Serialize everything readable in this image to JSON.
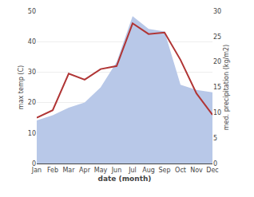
{
  "chart_data": {
    "type": "line",
    "categories": [
      "Jan",
      "Feb",
      "Mar",
      "Apr",
      "May",
      "Jun",
      "Jul",
      "Aug",
      "Sep",
      "Oct",
      "Nov",
      "Dec"
    ],
    "series": [
      {
        "type": "area",
        "color": "#b8c8e8",
        "axis": "y2",
        "values": [
          8.5,
          9.5,
          11.0,
          12.0,
          15.0,
          20.0,
          29.0,
          26.5,
          26.0,
          15.5,
          14.5,
          14.0
        ]
      },
      {
        "type": "line",
        "color": "#b03535",
        "values": [
          15.0,
          17.5,
          29.5,
          27.5,
          31.0,
          32.0,
          46.0,
          42.5,
          43.0,
          34.0,
          23.0,
          16.0
        ]
      }
    ],
    "xlabel": "date (month)",
    "ylabel": "max temp (C)",
    "y2label": "med. precipitation (kg/m2)",
    "ylim": [
      0,
      50
    ],
    "yticks": [
      0,
      10,
      20,
      30,
      40,
      50
    ],
    "y2lim": [
      0,
      30
    ],
    "y2ticks": [
      0,
      5,
      10,
      15,
      20,
      25,
      30
    ],
    "grid": true
  }
}
